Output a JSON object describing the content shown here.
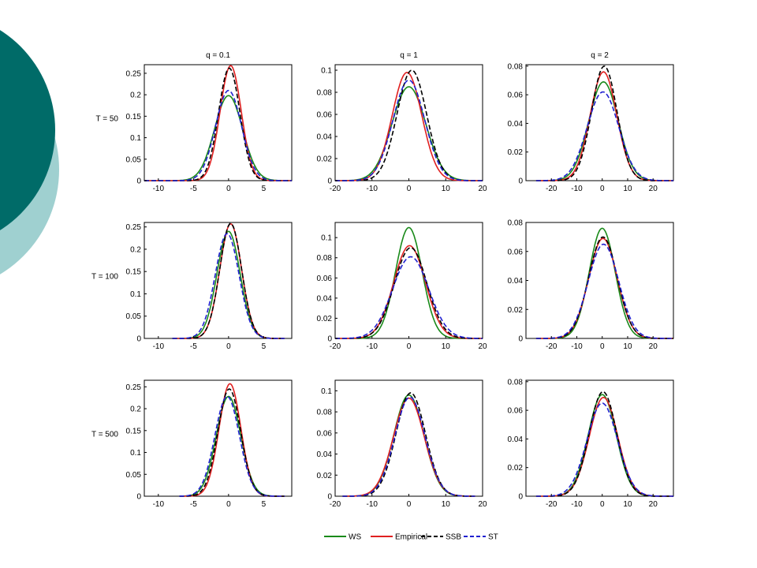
{
  "colors": {
    "WS": "#1a8a1a",
    "Empirical": "#e02020",
    "SSB": "#000000",
    "ST": "#2020d0",
    "circle_dark": "#006b68",
    "circle_light": "#9fd0d0"
  },
  "column_titles": [
    "q = 0.1",
    "q = 1",
    "q = 2"
  ],
  "row_labels": [
    "T = 50",
    "T = 100",
    "T = 500"
  ],
  "legend": [
    {
      "label": "WS",
      "style": "solid"
    },
    {
      "label": "Empirical",
      "style": "solid"
    },
    {
      "label": "SSB",
      "style": "dashed"
    },
    {
      "label": "ST",
      "style": "dashed"
    }
  ],
  "chart_data": [
    {
      "type": "line",
      "row": 0,
      "col": 0,
      "title": "q = 0.1",
      "row_label": "T = 50",
      "xlim": [
        -12,
        9
      ],
      "ylim": [
        0,
        0.27
      ],
      "xticks": [
        -10,
        -5,
        0,
        5
      ],
      "yticks": [
        0,
        0.05,
        0.1,
        0.15,
        0.2,
        0.25
      ],
      "xtick_labels": [
        "-10",
        "-5",
        "0",
        "5"
      ],
      "ytick_labels": [
        "0",
        "0.05",
        "0.1",
        "0.15",
        "0.2",
        "0.25"
      ],
      "series": [
        {
          "name": "WS",
          "peak": 0.198,
          "mean": 0.0,
          "sd": 2.0,
          "range": [
            -12,
            9
          ]
        },
        {
          "name": "Empirical",
          "peak": 0.268,
          "mean": 0.3,
          "sd": 1.5,
          "range": [
            -12,
            9
          ]
        },
        {
          "name": "SSB",
          "peak": 0.262,
          "mean": 0.1,
          "sd": 1.52,
          "range": [
            -12,
            9
          ]
        },
        {
          "name": "ST",
          "peak": 0.21,
          "mean": 0.0,
          "sd": 1.85,
          "range": [
            -12,
            9
          ]
        }
      ]
    },
    {
      "type": "line",
      "row": 0,
      "col": 1,
      "title": "q = 1",
      "row_label": "",
      "xlim": [
        -20,
        20
      ],
      "ylim": [
        0,
        0.105
      ],
      "xticks": [
        -20,
        -10,
        0,
        10,
        20
      ],
      "yticks": [
        0,
        0.02,
        0.04,
        0.06,
        0.08,
        0.1
      ],
      "xtick_labels": [
        "-20",
        "-10",
        "0",
        "10",
        "20"
      ],
      "ytick_labels": [
        "0",
        "0.02",
        "0.04",
        "0.06",
        "0.08",
        "0.1"
      ],
      "series": [
        {
          "name": "WS",
          "peak": 0.085,
          "mean": 0.0,
          "sd": 4.6,
          "range": [
            -20,
            20
          ]
        },
        {
          "name": "Empirical",
          "peak": 0.098,
          "mean": -0.5,
          "sd": 4.0,
          "range": [
            -20,
            20
          ]
        },
        {
          "name": "SSB",
          "peak": 0.1,
          "mean": 0.8,
          "sd": 4.0,
          "range": [
            -20,
            20
          ]
        },
        {
          "name": "ST",
          "peak": 0.091,
          "mean": 0.0,
          "sd": 4.3,
          "range": [
            -20,
            20
          ]
        }
      ]
    },
    {
      "type": "line",
      "row": 0,
      "col": 2,
      "title": "q = 2",
      "row_label": "",
      "xlim": [
        -30,
        28
      ],
      "ylim": [
        0,
        0.081
      ],
      "xticks": [
        -20,
        -10,
        0,
        10,
        20
      ],
      "yticks": [
        0,
        0.02,
        0.04,
        0.06,
        0.08
      ],
      "xtick_labels": [
        "-20",
        "-10",
        "0",
        "10",
        "20"
      ],
      "ytick_labels": [
        "0",
        "0.02",
        "0.04",
        "0.06",
        "0.08"
      ],
      "series": [
        {
          "name": "WS",
          "peak": 0.069,
          "mean": 0.5,
          "sd": 5.8,
          "range": [
            -26,
            28
          ]
        },
        {
          "name": "Empirical",
          "peak": 0.076,
          "mean": 0.5,
          "sd": 5.2,
          "range": [
            -26,
            28
          ]
        },
        {
          "name": "SSB",
          "peak": 0.08,
          "mean": 0.8,
          "sd": 5.0,
          "range": [
            -26,
            28
          ]
        },
        {
          "name": "ST",
          "peak": 0.062,
          "mean": 0.3,
          "sd": 6.2,
          "range": [
            -26,
            28
          ]
        }
      ]
    },
    {
      "type": "line",
      "row": 1,
      "col": 0,
      "title": "",
      "row_label": "T = 100",
      "xlim": [
        -12,
        9
      ],
      "ylim": [
        0,
        0.26
      ],
      "xticks": [
        -10,
        -5,
        0,
        5
      ],
      "yticks": [
        0,
        0.05,
        0.1,
        0.15,
        0.2,
        0.25
      ],
      "xtick_labels": [
        "-10",
        "-5",
        "0",
        "5"
      ],
      "ytick_labels": [
        "0",
        "0.05",
        "0.1",
        "0.15",
        "0.2",
        "0.25"
      ],
      "series": [
        {
          "name": "WS",
          "peak": 0.24,
          "mean": 0.0,
          "sd": 1.65,
          "range": [
            -8,
            8
          ]
        },
        {
          "name": "Empirical",
          "peak": 0.257,
          "mean": 0.3,
          "sd": 1.55,
          "range": [
            -8,
            8
          ]
        },
        {
          "name": "SSB",
          "peak": 0.258,
          "mean": 0.3,
          "sd": 1.55,
          "range": [
            -8,
            8
          ]
        },
        {
          "name": "ST",
          "peak": 0.235,
          "mean": -0.2,
          "sd": 1.7,
          "range": [
            -8,
            8
          ]
        }
      ]
    },
    {
      "type": "line",
      "row": 1,
      "col": 1,
      "title": "",
      "row_label": "",
      "xlim": [
        -20,
        20
      ],
      "ylim": [
        0,
        0.115
      ],
      "xticks": [
        -20,
        -10,
        0,
        10,
        20
      ],
      "yticks": [
        0,
        0.02,
        0.04,
        0.06,
        0.08,
        0.1
      ],
      "xtick_labels": [
        "-20",
        "-10",
        "0",
        "10",
        "20"
      ],
      "ytick_labels": [
        "0",
        "0.02",
        "0.04",
        "0.06",
        "0.08",
        "0.1"
      ],
      "series": [
        {
          "name": "WS",
          "peak": 0.11,
          "mean": 0.0,
          "sd": 3.6,
          "range": [
            -20,
            20
          ]
        },
        {
          "name": "Empirical",
          "peak": 0.092,
          "mean": 0.2,
          "sd": 4.3,
          "range": [
            -20,
            20
          ]
        },
        {
          "name": "SSB",
          "peak": 0.09,
          "mean": 0.5,
          "sd": 4.4,
          "range": [
            -20,
            20
          ]
        },
        {
          "name": "ST",
          "peak": 0.081,
          "mean": 0.5,
          "sd": 4.9,
          "range": [
            -20,
            20
          ]
        }
      ]
    },
    {
      "type": "line",
      "row": 1,
      "col": 2,
      "title": "",
      "row_label": "",
      "xlim": [
        -30,
        28
      ],
      "ylim": [
        0,
        0.08
      ],
      "xticks": [
        -20,
        -10,
        0,
        10,
        20
      ],
      "yticks": [
        0,
        0.02,
        0.04,
        0.06,
        0.08
      ],
      "xtick_labels": [
        "-20",
        "-10",
        "0",
        "10",
        "20"
      ],
      "ytick_labels": [
        "0",
        "0.02",
        "0.04",
        "0.06",
        "0.08"
      ],
      "series": [
        {
          "name": "WS",
          "peak": 0.076,
          "mean": 0.0,
          "sd": 5.1,
          "range": [
            -26,
            28
          ]
        },
        {
          "name": "Empirical",
          "peak": 0.069,
          "mean": 0.3,
          "sd": 5.6,
          "range": [
            -26,
            28
          ]
        },
        {
          "name": "SSB",
          "peak": 0.07,
          "mean": 0.3,
          "sd": 5.6,
          "range": [
            -26,
            28
          ]
        },
        {
          "name": "ST",
          "peak": 0.065,
          "mean": 0.5,
          "sd": 6.0,
          "range": [
            -26,
            28
          ]
        }
      ]
    },
    {
      "type": "line",
      "row": 2,
      "col": 0,
      "title": "",
      "row_label": "T = 500",
      "xlim": [
        -12,
        9
      ],
      "ylim": [
        0,
        0.265
      ],
      "xticks": [
        -10,
        -5,
        0,
        5
      ],
      "yticks": [
        0,
        0.05,
        0.1,
        0.15,
        0.2,
        0.25
      ],
      "xtick_labels": [
        "-10",
        "-5",
        "0",
        "5"
      ],
      "ytick_labels": [
        "0",
        "0.05",
        "0.1",
        "0.15",
        "0.2",
        "0.25"
      ],
      "series": [
        {
          "name": "WS",
          "peak": 0.228,
          "mean": 0.0,
          "sd": 1.75,
          "range": [
            -7,
            8
          ]
        },
        {
          "name": "Empirical",
          "peak": 0.257,
          "mean": 0.2,
          "sd": 1.55,
          "range": [
            -7,
            8
          ]
        },
        {
          "name": "SSB",
          "peak": 0.245,
          "mean": 0.1,
          "sd": 1.62,
          "range": [
            -7,
            8
          ]
        },
        {
          "name": "ST",
          "peak": 0.228,
          "mean": -0.2,
          "sd": 1.75,
          "range": [
            -7,
            8
          ]
        }
      ]
    },
    {
      "type": "line",
      "row": 2,
      "col": 1,
      "title": "",
      "row_label": "",
      "xlim": [
        -20,
        20
      ],
      "ylim": [
        0,
        0.11
      ],
      "xticks": [
        -20,
        -10,
        0,
        10,
        20
      ],
      "yticks": [
        0,
        0.02,
        0.04,
        0.06,
        0.08,
        0.1
      ],
      "xtick_labels": [
        "-20",
        "-10",
        "0",
        "10",
        "20"
      ],
      "ytick_labels": [
        "0",
        "0.02",
        "0.04",
        "0.06",
        "0.08",
        "0.1"
      ],
      "series": [
        {
          "name": "WS",
          "peak": 0.096,
          "mean": 0.0,
          "sd": 4.1,
          "range": [
            -18,
            18
          ]
        },
        {
          "name": "Empirical",
          "peak": 0.093,
          "mean": 0.0,
          "sd": 4.2,
          "range": [
            -18,
            18
          ]
        },
        {
          "name": "SSB",
          "peak": 0.098,
          "mean": 0.5,
          "sd": 4.0,
          "range": [
            -18,
            18
          ]
        },
        {
          "name": "ST",
          "peak": 0.094,
          "mean": 0.3,
          "sd": 4.1,
          "range": [
            -18,
            18
          ]
        }
      ]
    },
    {
      "type": "line",
      "row": 2,
      "col": 2,
      "title": "",
      "row_label": "",
      "xlim": [
        -30,
        28
      ],
      "ylim": [
        0,
        0.081
      ],
      "xticks": [
        -20,
        -10,
        0,
        10,
        20
      ],
      "yticks": [
        0,
        0.02,
        0.04,
        0.06,
        0.08
      ],
      "xtick_labels": [
        "-20",
        "-10",
        "0",
        "10",
        "20"
      ],
      "ytick_labels": [
        "0",
        "0.02",
        "0.04",
        "0.06",
        "0.08"
      ],
      "series": [
        {
          "name": "WS",
          "peak": 0.071,
          "mean": 0.0,
          "sd": 5.5,
          "range": [
            -26,
            28
          ]
        },
        {
          "name": "Empirical",
          "peak": 0.069,
          "mean": 0.5,
          "sd": 5.6,
          "range": [
            -26,
            28
          ]
        },
        {
          "name": "SSB",
          "peak": 0.073,
          "mean": 0.3,
          "sd": 5.4,
          "range": [
            -26,
            28
          ]
        },
        {
          "name": "ST",
          "peak": 0.065,
          "mean": 0.0,
          "sd": 6.0,
          "range": [
            -26,
            28
          ]
        }
      ]
    }
  ]
}
